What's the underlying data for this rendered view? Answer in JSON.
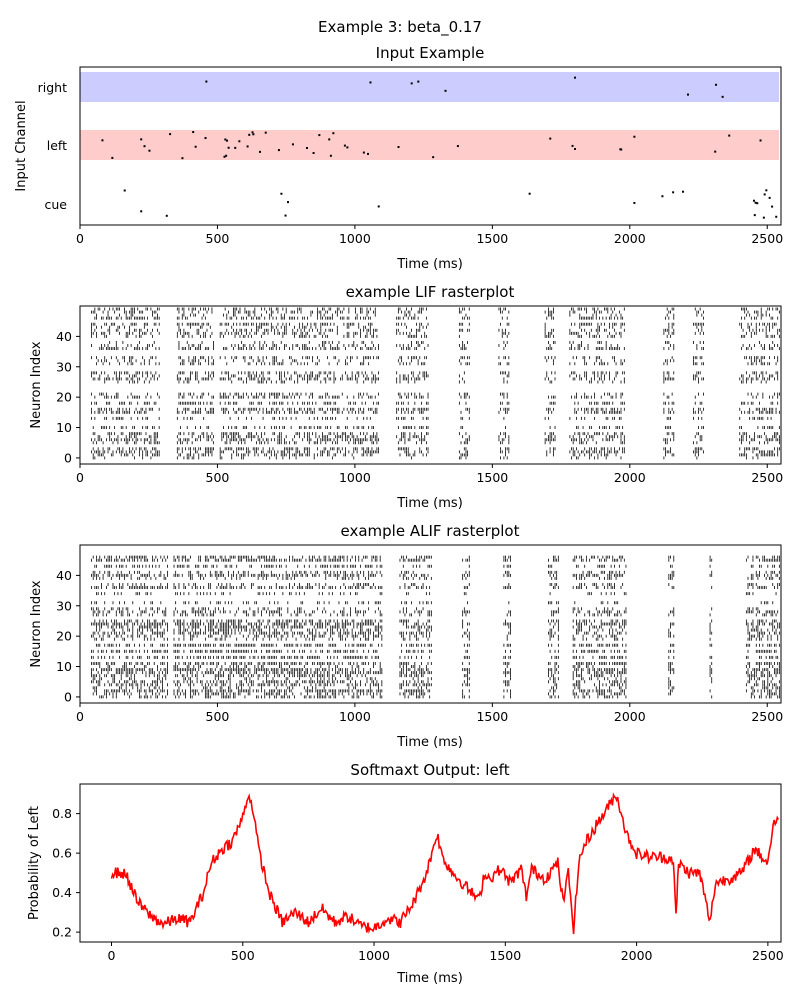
{
  "figure": {
    "suptitle": "Example 3: beta_0.17"
  },
  "colors": {
    "right_band": "#ccccff",
    "left_band": "#ffcccc",
    "spike": "#000000",
    "output_line": "#ff0000"
  },
  "chart_data": [
    {
      "name": "input",
      "type": "scatter",
      "title": "Input Example",
      "xlabel": "Time (ms)",
      "ylabel": "Input Channel",
      "xlim": [
        0,
        2550
      ],
      "xticks": [
        0,
        500,
        1000,
        1500,
        2000,
        2500
      ],
      "channels": [
        "cue",
        "left",
        "right"
      ],
      "channel_active_windows": {
        "right": [
          [
            30,
            80
          ],
          [
            330,
            460
          ],
          [
            1050,
            2550
          ]
        ],
        "left": [
          [
            40,
            1050
          ],
          [
            1050,
            2550
          ]
        ],
        "cue": [
          [
            20,
            60
          ],
          [
            150,
            460
          ],
          [
            480,
            1100
          ],
          [
            1100,
            2550
          ],
          [
            2380,
            2550
          ]
        ]
      }
    },
    {
      "name": "lif",
      "type": "scatter",
      "title": "example LIF rasterplot",
      "xlabel": "Time (ms)",
      "ylabel": "Neuron Index",
      "xlim": [
        0,
        2550
      ],
      "ylim": [
        -2,
        50
      ],
      "xticks": [
        0,
        500,
        1000,
        1500,
        2000,
        2500
      ],
      "yticks": [
        0,
        10,
        20,
        30,
        40
      ],
      "n_neurons": 50,
      "active_windows_ms": [
        [
          40,
          290
        ],
        [
          350,
          490
        ],
        [
          510,
          1090
        ],
        [
          1150,
          1270
        ],
        [
          1380,
          1420
        ],
        [
          1520,
          1560
        ],
        [
          1690,
          1730
        ],
        [
          1780,
          1980
        ],
        [
          2120,
          2160
        ],
        [
          2230,
          2270
        ],
        [
          2400,
          2550
        ]
      ]
    },
    {
      "name": "alif",
      "type": "scatter",
      "title": "example ALIF rasterplot",
      "xlabel": "Time (ms)",
      "ylabel": "Neuron Index",
      "xlim": [
        0,
        2550
      ],
      "ylim": [
        -2,
        50
      ],
      "xticks": [
        0,
        500,
        1000,
        1500,
        2000,
        2500
      ],
      "yticks": [
        0,
        10,
        20,
        30,
        40
      ],
      "n_neurons": 50,
      "active_windows_ms": [
        [
          40,
          320
        ],
        [
          340,
          1100
        ],
        [
          1160,
          1280
        ],
        [
          1390,
          1420
        ],
        [
          1540,
          1570
        ],
        [
          1700,
          1740
        ],
        [
          1790,
          1990
        ],
        [
          2140,
          2160
        ],
        [
          2290,
          2300
        ],
        [
          2420,
          2550
        ]
      ]
    },
    {
      "name": "output",
      "type": "line",
      "title": "Softmaxt Output: left",
      "xlabel": "Time (ms)",
      "ylabel": "Probability of Left",
      "xlim": [
        -120,
        2550
      ],
      "ylim": [
        0.15,
        0.95
      ],
      "xticks": [
        0,
        500,
        1000,
        1500,
        2000,
        2500
      ],
      "yticks": [
        0.2,
        0.4,
        0.6,
        0.8
      ],
      "x": [
        0,
        40,
        60,
        100,
        150,
        200,
        250,
        300,
        350,
        380,
        420,
        460,
        500,
        520,
        540,
        560,
        600,
        650,
        700,
        750,
        800,
        850,
        900,
        950,
        1000,
        1050,
        1100,
        1150,
        1200,
        1220,
        1240,
        1260,
        1300,
        1350,
        1400,
        1420,
        1440,
        1480,
        1520,
        1560,
        1580,
        1600,
        1650,
        1700,
        1720,
        1740,
        1760,
        1780,
        1800,
        1850,
        1900,
        1920,
        1940,
        1960,
        2000,
        2050,
        2100,
        2140,
        2150,
        2160,
        2200,
        2240,
        2280,
        2300,
        2350,
        2400,
        2450,
        2500,
        2520,
        2540
      ],
      "y": [
        0.5,
        0.5,
        0.48,
        0.35,
        0.28,
        0.24,
        0.27,
        0.25,
        0.4,
        0.55,
        0.62,
        0.66,
        0.78,
        0.9,
        0.82,
        0.62,
        0.4,
        0.25,
        0.3,
        0.25,
        0.32,
        0.25,
        0.28,
        0.23,
        0.22,
        0.27,
        0.25,
        0.35,
        0.5,
        0.6,
        0.7,
        0.58,
        0.5,
        0.43,
        0.36,
        0.5,
        0.47,
        0.52,
        0.45,
        0.52,
        0.38,
        0.52,
        0.47,
        0.55,
        0.35,
        0.5,
        0.22,
        0.55,
        0.64,
        0.75,
        0.85,
        0.9,
        0.82,
        0.7,
        0.6,
        0.58,
        0.58,
        0.57,
        0.27,
        0.55,
        0.5,
        0.5,
        0.25,
        0.45,
        0.47,
        0.5,
        0.62,
        0.55,
        0.75,
        0.77
      ]
    }
  ]
}
